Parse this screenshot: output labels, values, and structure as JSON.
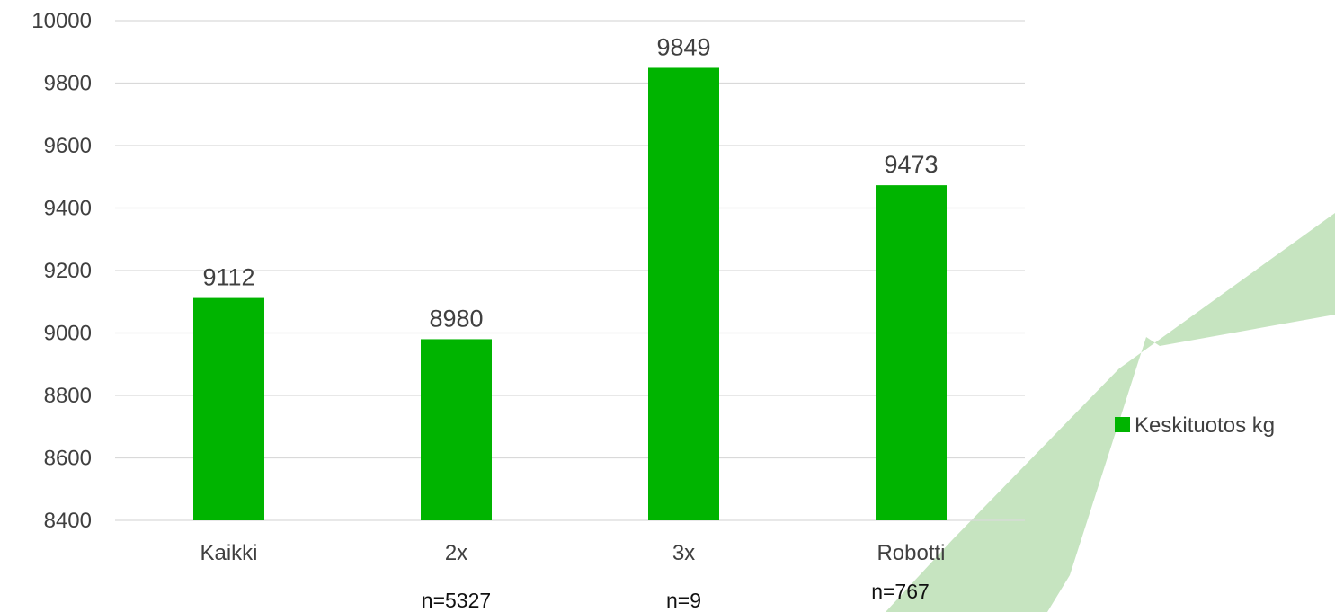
{
  "chart_data": {
    "type": "bar",
    "categories": [
      "Kaikki",
      "2x",
      "3x",
      "Robotti"
    ],
    "series": [
      {
        "name": "Keskituotos kg",
        "values": [
          9112,
          8980,
          9849,
          9473
        ],
        "color": "#00b400"
      }
    ],
    "data_labels": [
      "9112",
      "8980",
      "9849",
      "9473"
    ],
    "category_notes": [
      "",
      "n=5327",
      "n=9",
      "n=767"
    ],
    "ylim": [
      8400,
      10000
    ],
    "yticks": [
      8400,
      8600,
      8800,
      9000,
      9200,
      9400,
      9600,
      9800,
      10000
    ],
    "grid": true,
    "legend_position": "right",
    "title": "",
    "xlabel": "",
    "ylabel": ""
  },
  "colors": {
    "bar": "#00b400",
    "grid": "#d9d9d9",
    "background_swoosh": "#c6e4c0"
  }
}
